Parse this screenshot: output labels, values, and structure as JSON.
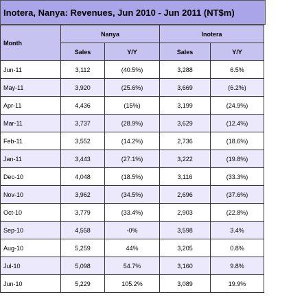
{
  "title": "Inotera, Nanya: Revenues, Jun 2010 - Jun 2011 (NT$m)",
  "header": {
    "month": "Month",
    "groups": [
      {
        "name": "Nanya",
        "columns": [
          "Sales",
          "Y/Y"
        ]
      },
      {
        "name": "Inotera",
        "columns": [
          "Sales",
          "Y/Y"
        ]
      }
    ]
  },
  "rows": [
    [
      "Jun-11",
      "3,112",
      "(40.5%)",
      "3,288",
      "6.5%"
    ],
    [
      "May-11",
      "3,920",
      "(25.6%)",
      "3,669",
      "(6.2%)"
    ],
    [
      "Apr-11",
      "4,436",
      "(15%)",
      "3,199",
      "(24.9%)"
    ],
    [
      "Mar-11",
      "3,737",
      "(28.9%)",
      "3,629",
      "(12.4%)"
    ],
    [
      "Feb-11",
      "3,552",
      "(14.2%)",
      "2,736",
      "(18.6%)"
    ],
    [
      "Jan-11",
      "3,443",
      "(27.1%)",
      "3,222",
      "(19.8%)"
    ],
    [
      "Dec-10",
      "4,048",
      "(18.5%)",
      "3,116",
      "(33.3%)"
    ],
    [
      "Nov-10",
      "3,962",
      "(34.5%)",
      "2,696",
      "(37.6%)"
    ],
    [
      "Oct-10",
      "3,779",
      "(33.4%)",
      "2,903",
      "(22.8%)"
    ],
    [
      "Sep-10",
      "4,558",
      "-0%",
      "3,598",
      "3.4%"
    ],
    [
      "Aug-10",
      "5,259",
      "44%",
      "3,205",
      "0.8%"
    ],
    [
      "Jul-10",
      "5,098",
      "54.7%",
      "3,160",
      "9.8%"
    ],
    [
      "Jun-10",
      "5,229",
      "105.2%",
      "3,089",
      "19.9%"
    ]
  ]
}
